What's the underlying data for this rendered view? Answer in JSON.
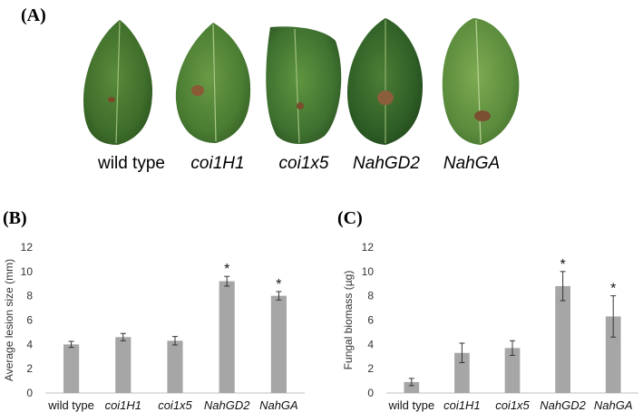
{
  "panel_labels": {
    "a": "(A)",
    "b": "(B)",
    "c": "(C)"
  },
  "leaves": [
    {
      "label": "wild type",
      "italic": false
    },
    {
      "label": "coi1H1",
      "italic": true
    },
    {
      "label": "coi1x5",
      "italic": true
    },
    {
      "label": "NahGD2",
      "italic": true
    },
    {
      "label": "NahGA",
      "italic": true
    }
  ],
  "chart_data": [
    {
      "type": "bar",
      "panel": "(B)",
      "categories": [
        "wild type",
        "coi1H1",
        "coi1x5",
        "NahGD2",
        "NahGA"
      ],
      "italic_categories": [
        false,
        true,
        true,
        true,
        true
      ],
      "values": [
        4.0,
        4.6,
        4.3,
        9.2,
        8.0
      ],
      "errors": [
        0.25,
        0.3,
        0.35,
        0.4,
        0.35
      ],
      "significance": [
        "",
        "",
        "",
        "*",
        "*"
      ],
      "xlabel": "",
      "ylabel": "Average lesion size (mm)",
      "ylim": [
        0,
        12
      ],
      "yticks": [
        0,
        2,
        4,
        6,
        8,
        10,
        12
      ],
      "grid": false,
      "bar_color": "#a6a6a6"
    },
    {
      "type": "bar",
      "panel": "(C)",
      "categories": [
        "wild type",
        "coi1H1",
        "coi1x5",
        "NahGD2",
        "NahGA"
      ],
      "italic_categories": [
        false,
        true,
        true,
        true,
        true
      ],
      "values": [
        0.9,
        3.3,
        3.7,
        8.8,
        6.3
      ],
      "errors": [
        0.3,
        0.8,
        0.6,
        1.2,
        1.7
      ],
      "significance": [
        "",
        "",
        "",
        "*",
        "*"
      ],
      "xlabel": "",
      "ylabel": "Fungal biomass (µg)",
      "ylim": [
        0,
        12
      ],
      "yticks": [
        0,
        2,
        4,
        6,
        8,
        10,
        12
      ],
      "grid": false,
      "bar_color": "#a6a6a6"
    }
  ]
}
